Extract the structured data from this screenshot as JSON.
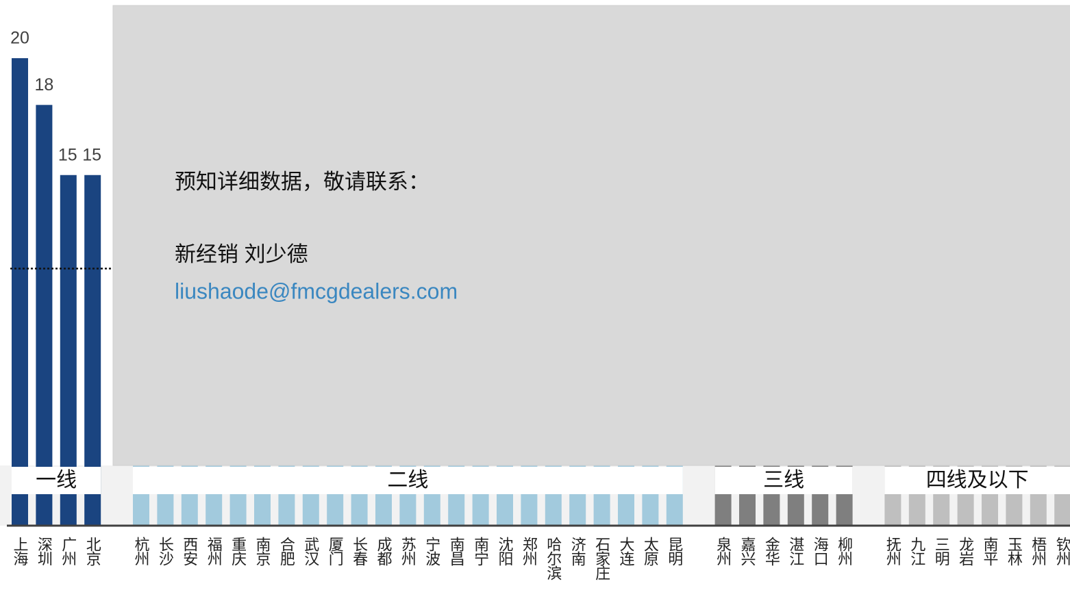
{
  "chart_data": {
    "type": "bar",
    "ylim": [
      0,
      20
    ],
    "average": 11,
    "groups": [
      {
        "name": "一线",
        "color": "#1a4480",
        "categories": [
          "上海",
          "深圳",
          "广州",
          "北京"
        ],
        "values": [
          20,
          18,
          15,
          15
        ]
      },
      {
        "name": "二线",
        "color": "#a2cadd",
        "categories": [
          "杭州",
          "长沙",
          "西安",
          "福州",
          "重庆",
          "南京",
          "合肥",
          "武汉",
          "厦门",
          "长春",
          "成都",
          "苏州",
          "宁波",
          "南昌",
          "南宁",
          "沈阳",
          "郑州",
          "哈尔滨",
          "济南",
          "石家庄",
          "大连",
          "太原",
          "昆明"
        ],
        "values": [
          8,
          8,
          8,
          8,
          8,
          8,
          8,
          8,
          8,
          8,
          8,
          8,
          8,
          8,
          8,
          8,
          8,
          8,
          8,
          8,
          8,
          8,
          8
        ]
      },
      {
        "name": "三线",
        "color": "#7f7f7f",
        "categories": [
          "泉州",
          "嘉兴",
          "金华",
          "湛江",
          "海口",
          "柳州"
        ],
        "values": [
          5,
          5,
          5,
          5,
          5,
          5
        ]
      },
      {
        "name": "四线及以下",
        "color": "#bfbfbf",
        "categories": [
          "抚州",
          "九江",
          "三明",
          "龙岩",
          "南平",
          "玉林",
          "梧州",
          "钦州"
        ],
        "values": [
          4,
          4,
          4,
          4,
          4,
          4,
          4,
          4
        ]
      }
    ]
  },
  "overlay": {
    "lines": [
      "预知详细数据，敬请联系：",
      "新经销 刘少德"
    ],
    "email": "liushaode@fmcgdealers.com"
  }
}
